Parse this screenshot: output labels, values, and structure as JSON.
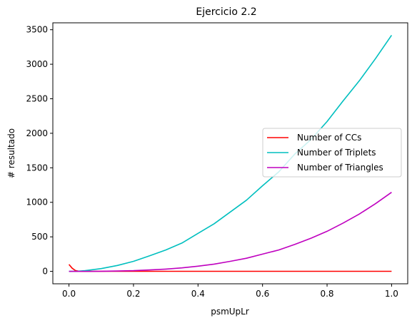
{
  "chart_data": {
    "type": "line",
    "title": "Ejercicio 2.2",
    "xlabel": "psmUpLr",
    "ylabel": "# resultado",
    "xlim": [
      -0.05,
      1.05
    ],
    "ylim": [
      -180,
      3600
    ],
    "xticks": [
      0.0,
      0.2,
      0.4,
      0.6,
      0.8,
      1.0
    ],
    "xtick_labels": [
      "0.0",
      "0.2",
      "0.4",
      "0.6",
      "0.8",
      "1.0"
    ],
    "yticks": [
      0,
      500,
      1000,
      1500,
      2000,
      2500,
      3000,
      3500
    ],
    "ytick_labels": [
      "0",
      "500",
      "1000",
      "1500",
      "2000",
      "2500",
      "3000",
      "3500"
    ],
    "grid": false,
    "legend_position": "center-right",
    "series": [
      {
        "name": "Number of CCs",
        "color": "#ff0000",
        "x": [
          0.0,
          0.01,
          0.02,
          0.03,
          0.05,
          0.1,
          0.2,
          0.3,
          0.4,
          0.5,
          0.6,
          0.7,
          0.8,
          0.9,
          1.0
        ],
        "y": [
          100,
          45,
          12,
          3,
          1,
          1,
          1,
          1,
          1,
          1,
          1,
          1,
          1,
          1,
          1
        ]
      },
      {
        "name": "Number of Triplets",
        "color": "#00bfbf",
        "x": [
          0.0,
          0.025,
          0.05,
          0.1,
          0.15,
          0.2,
          0.25,
          0.3,
          0.35,
          0.4,
          0.45,
          0.5,
          0.55,
          0.6,
          0.65,
          0.7,
          0.75,
          0.8,
          0.85,
          0.9,
          0.95,
          1.0
        ],
        "y": [
          0,
          2,
          10,
          40,
          85,
          145,
          225,
          310,
          410,
          550,
          690,
          860,
          1030,
          1240,
          1440,
          1700,
          1910,
          2170,
          2470,
          2760,
          3080,
          3420
        ]
      },
      {
        "name": "Number of Triangles",
        "color": "#bf00bf",
        "x": [
          0.0,
          0.05,
          0.1,
          0.15,
          0.2,
          0.25,
          0.3,
          0.35,
          0.4,
          0.45,
          0.5,
          0.55,
          0.6,
          0.65,
          0.7,
          0.75,
          0.8,
          0.85,
          0.9,
          0.95,
          1.0
        ],
        "y": [
          0,
          0,
          2,
          5,
          10,
          20,
          33,
          50,
          75,
          105,
          145,
          190,
          250,
          310,
          390,
          480,
          580,
          700,
          830,
          980,
          1145
        ]
      }
    ]
  }
}
